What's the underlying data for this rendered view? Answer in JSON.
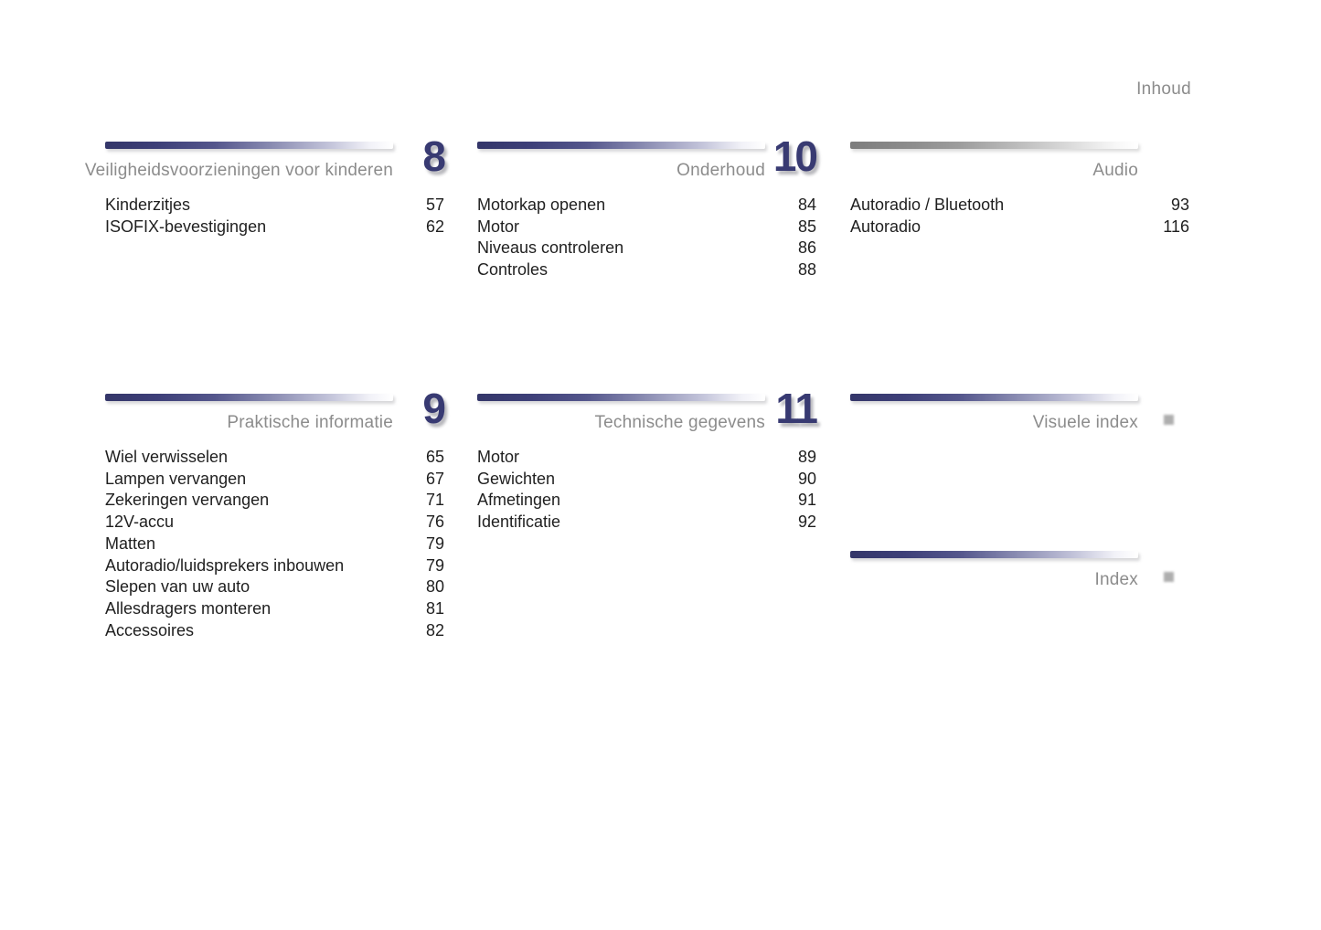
{
  "page": {
    "corner_label": "Inhoud"
  },
  "colors": {
    "accent_navy": "#383a72",
    "bar_gray": "#8a8a8a",
    "title_gray": "#8c8c8c",
    "body_text": "#1f1f1f",
    "background": "#ffffff"
  },
  "sections": [
    {
      "id": "child-safety",
      "number": "8",
      "title": "Veiligheidsvoorzieningen voor kinderen",
      "entries": [
        {
          "label": "Kinderzitjes",
          "page": "57"
        },
        {
          "label": "ISOFIX-bevestigingen",
          "page": "62"
        }
      ]
    },
    {
      "id": "maintenance",
      "number": "10",
      "title": "Onderhoud",
      "entries": [
        {
          "label": "Motorkap openen",
          "page": "84"
        },
        {
          "label": "Motor",
          "page": "85"
        },
        {
          "label": "Niveaus controleren",
          "page": "86"
        },
        {
          "label": "Controles",
          "page": "88"
        }
      ]
    },
    {
      "id": "audio",
      "number": "",
      "title": "Audio",
      "entries": [
        {
          "label": "Autoradio / Bluetooth",
          "page": "93"
        },
        {
          "label": "Autoradio",
          "page": "116"
        }
      ]
    },
    {
      "id": "practical-info",
      "number": "9",
      "title": "Praktische informatie",
      "entries": [
        {
          "label": "Wiel verwisselen",
          "page": "65"
        },
        {
          "label": "Lampen vervangen",
          "page": "67"
        },
        {
          "label": "Zekeringen vervangen",
          "page": "71"
        },
        {
          "label": "12V-accu",
          "page": "76"
        },
        {
          "label": "Matten",
          "page": "79"
        },
        {
          "label": "Autoradio/luidsprekers inbouwen",
          "page": "79"
        },
        {
          "label": "Slepen van uw auto",
          "page": "80"
        },
        {
          "label": "Allesdragers monteren",
          "page": "81"
        },
        {
          "label": "Accessoires",
          "page": "82"
        }
      ]
    },
    {
      "id": "technical-data",
      "number": "11",
      "title": "Technische gegevens",
      "entries": [
        {
          "label": "Motor",
          "page": "89"
        },
        {
          "label": "Gewichten",
          "page": "90"
        },
        {
          "label": "Afmetingen",
          "page": "91"
        },
        {
          "label": "Identificatie",
          "page": "92"
        }
      ]
    },
    {
      "id": "visual-index",
      "number": "",
      "title": "Visuele index",
      "entries": []
    },
    {
      "id": "index",
      "number": "",
      "title": "Index",
      "entries": []
    }
  ]
}
